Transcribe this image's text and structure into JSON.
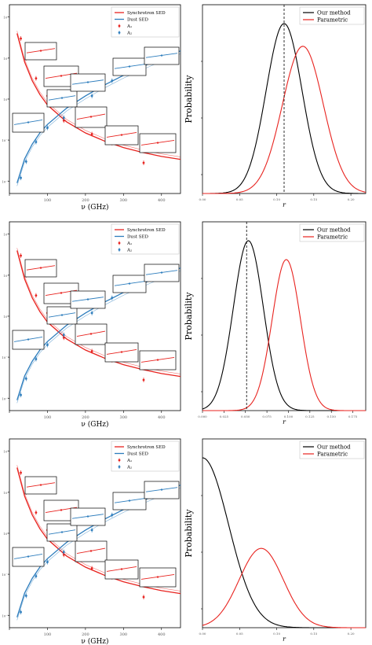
{
  "figure": {
    "background": "#ffffff",
    "colors": {
      "synchrotron": "#e8231f",
      "dust": "#2d7dbd",
      "our_method": "#000000",
      "parametric": "#e8231f"
    }
  },
  "chart_data": [
    {
      "panel": "row1-left",
      "type": "line",
      "xlabel": "ν (GHz)",
      "ylabel": "",
      "x_ticks": [
        "",
        "100",
        "200",
        "300",
        "400"
      ],
      "y_ticks": [
        "10⁻²",
        "10⁻¹",
        "10⁰",
        "10¹",
        "10²"
      ],
      "legend": {
        "position": "top-right",
        "entries": [
          "Synchrotron SED",
          "Dust SED",
          "A₁",
          "A₂"
        ]
      },
      "xlim": [
        0,
        450
      ],
      "series": [
        {
          "name": "Synchrotron SED",
          "x": [
            20,
            40,
            60,
            80,
            100,
            150,
            200,
            250,
            300,
            350,
            400,
            450
          ],
          "values": [
            40,
            8,
            2.8,
            1.3,
            0.72,
            0.28,
            0.15,
            0.095,
            0.066,
            0.05,
            0.04,
            0.034
          ]
        },
        {
          "name": "Dust SED",
          "x": [
            20,
            40,
            60,
            80,
            100,
            150,
            200,
            250,
            300,
            350,
            400,
            450
          ],
          "values": [
            0.009,
            0.035,
            0.08,
            0.15,
            0.24,
            0.6,
            1.2,
            2.2,
            3.8,
            6.2,
            9.8,
            15
          ]
        },
        {
          "name": "A₁",
          "x": [
            30,
            44,
            70,
            100,
            143,
            217,
            270,
            353
          ],
          "values": [
            30,
            10,
            3.2,
            1.2,
            0.3,
            0.14,
            0.085,
            0.028
          ]
        },
        {
          "name": "A₂",
          "x": [
            30,
            44,
            70,
            100,
            143,
            217,
            270,
            353
          ],
          "values": [
            0.012,
            0.03,
            0.09,
            0.2,
            0.35,
            1.2,
            2.8,
            7.5
          ]
        }
      ]
    },
    {
      "panel": "row1-right",
      "type": "line",
      "xlabel": "r",
      "ylabel": "Probability",
      "x_ticks": [
        "0.00",
        "0.05",
        "0.10",
        "0.15",
        "0.20"
      ],
      "legend": {
        "position": "top-right",
        "entries": [
          "Our method",
          "Parametric"
        ]
      },
      "xlim": [
        0,
        0.2
      ],
      "series": [
        {
          "name": "Our method",
          "mean": 0.1,
          "sigma": 0.022,
          "peak": 0.9
        },
        {
          "name": "Parametric",
          "mean": 0.123,
          "sigma": 0.025,
          "peak": 0.78
        }
      ],
      "reference_line": 0.1
    },
    {
      "panel": "row2-left",
      "type": "line",
      "xlabel": "ν (GHz)",
      "ylabel": "",
      "x_ticks": [
        "",
        "100",
        "200",
        "300",
        "400"
      ],
      "y_ticks": [
        "10⁻²",
        "10⁻¹",
        "10⁰",
        "10¹",
        "10²"
      ],
      "legend": {
        "position": "top-right",
        "entries": [
          "Synchrotron SED",
          "Dust SED",
          "A₁",
          "A₂"
        ]
      },
      "xlim": [
        0,
        450
      ],
      "series": [
        {
          "name": "Synchrotron SED",
          "x": [
            20,
            40,
            60,
            80,
            100,
            150,
            200,
            250,
            300,
            350,
            400,
            450
          ],
          "values": [
            40,
            8,
            2.8,
            1.3,
            0.72,
            0.28,
            0.15,
            0.095,
            0.066,
            0.05,
            0.04,
            0.034
          ]
        },
        {
          "name": "Dust SED",
          "x": [
            20,
            40,
            60,
            80,
            100,
            150,
            200,
            250,
            300,
            350,
            400,
            450
          ],
          "values": [
            0.009,
            0.035,
            0.08,
            0.15,
            0.24,
            0.6,
            1.2,
            2.2,
            3.8,
            6.2,
            9.8,
            15
          ]
        },
        {
          "name": "A₁",
          "x": [
            30,
            44,
            70,
            100,
            143,
            217,
            270,
            353
          ],
          "values": [
            30,
            10,
            3.2,
            1.2,
            0.3,
            0.14,
            0.085,
            0.028
          ]
        },
        {
          "name": "A₂",
          "x": [
            30,
            44,
            70,
            100,
            143,
            217,
            270,
            353
          ],
          "values": [
            0.012,
            0.03,
            0.09,
            0.2,
            0.35,
            1.2,
            2.8,
            7.5
          ]
        }
      ]
    },
    {
      "panel": "row2-right",
      "type": "line",
      "xlabel": "r",
      "ylabel": "Probability",
      "x_ticks": [
        "0.000",
        "0.025",
        "0.050",
        "0.075",
        "0.100",
        "0.125",
        "0.150",
        "0.175"
      ],
      "legend": {
        "position": "top-right",
        "entries": [
          "Our method",
          "Parametric"
        ]
      },
      "xlim": [
        0,
        0.185
      ],
      "series": [
        {
          "name": "Our method",
          "mean": 0.052,
          "sigma": 0.017,
          "peak": 0.9
        },
        {
          "name": "Parametric",
          "mean": 0.095,
          "sigma": 0.016,
          "peak": 0.8
        }
      ],
      "reference_line": 0.05
    },
    {
      "panel": "row3-left",
      "type": "line",
      "xlabel": "ν (GHz)",
      "ylabel": "",
      "x_ticks": [
        "",
        "100",
        "200",
        "300",
        "400"
      ],
      "y_ticks": [
        "10⁻²",
        "10⁻¹",
        "10⁰",
        "10¹",
        "10²"
      ],
      "legend": {
        "position": "top-right",
        "entries": [
          "Synchrotron SED",
          "Dust SED",
          "A₁",
          "A₂"
        ]
      },
      "xlim": [
        0,
        450
      ],
      "series": [
        {
          "name": "Synchrotron SED",
          "x": [
            20,
            40,
            60,
            80,
            100,
            150,
            200,
            250,
            300,
            350,
            400,
            450
          ],
          "values": [
            40,
            8,
            2.8,
            1.3,
            0.72,
            0.28,
            0.15,
            0.095,
            0.066,
            0.05,
            0.04,
            0.034
          ]
        },
        {
          "name": "Dust SED",
          "x": [
            20,
            40,
            60,
            80,
            100,
            150,
            200,
            250,
            300,
            350,
            400,
            450
          ],
          "values": [
            0.009,
            0.035,
            0.08,
            0.15,
            0.24,
            0.6,
            1.2,
            2.2,
            3.8,
            6.2,
            9.8,
            15
          ]
        },
        {
          "name": "A₁",
          "x": [
            30,
            44,
            70,
            100,
            143,
            217,
            270,
            353
          ],
          "values": [
            30,
            10,
            3.2,
            1.2,
            0.3,
            0.14,
            0.085,
            0.028
          ]
        },
        {
          "name": "A₂",
          "x": [
            30,
            44,
            70,
            100,
            143,
            217,
            270,
            353
          ],
          "values": [
            0.012,
            0.03,
            0.09,
            0.2,
            0.35,
            1.2,
            2.8,
            7.5
          ]
        }
      ]
    },
    {
      "panel": "row3-right",
      "type": "line",
      "xlabel": "r",
      "ylabel": "Probability",
      "x_ticks": [
        "0.00",
        "0.05",
        "0.10",
        "0.15",
        "0.20"
      ],
      "legend": {
        "position": "top-right",
        "entries": [
          "Our method",
          "Parametric"
        ]
      },
      "xlim": [
        0,
        0.2
      ],
      "series": [
        {
          "name": "Our method",
          "mean": 0.0,
          "sigma": 0.032,
          "peak": 0.9
        },
        {
          "name": "Parametric",
          "mean": 0.072,
          "sigma": 0.027,
          "peak": 0.42
        }
      ]
    }
  ]
}
